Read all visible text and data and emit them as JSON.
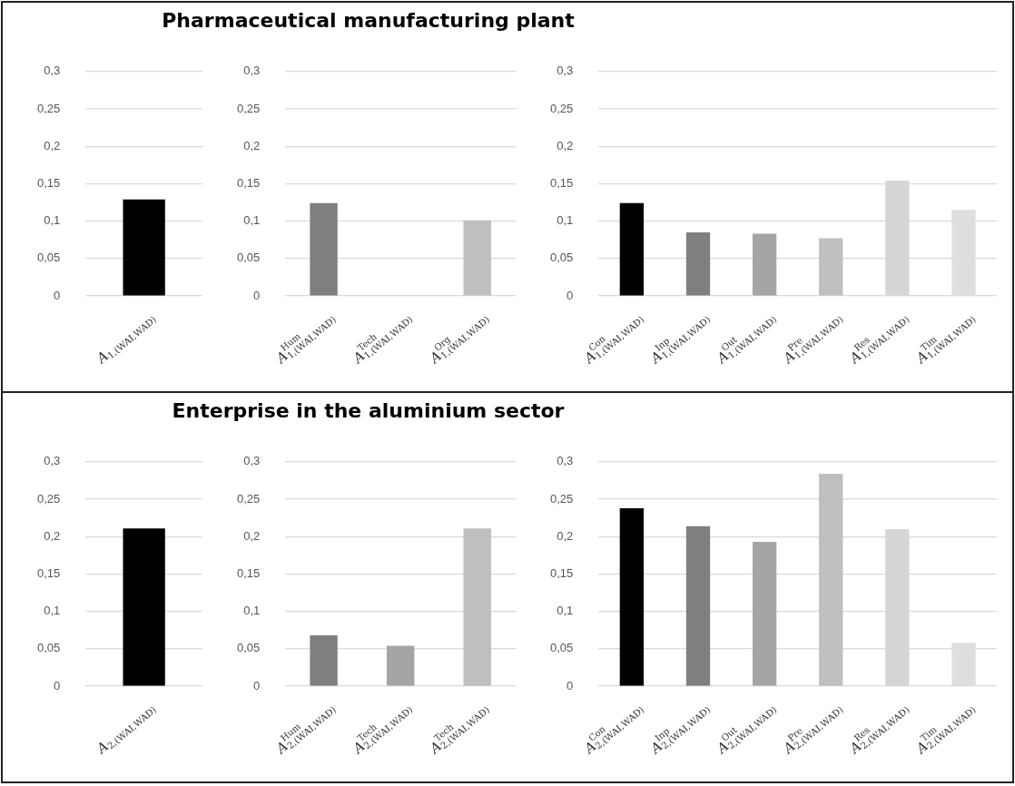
{
  "chart_data": [
    {
      "type": "bar",
      "categories": [
        "A$_{1,(WAI,WAD)}$"
      ],
      "values": [
        0.129
      ],
      "colors": [
        "#000000"
      ],
      "ylim": [
        0,
        0.3
      ],
      "yticks": [
        {
          "value": 0,
          "label": "0"
        },
        {
          "value": 0.05,
          "label": "0,05"
        },
        {
          "value": 0.1,
          "label": "0,1"
        },
        {
          "value": 0.15,
          "label": "0,15"
        },
        {
          "value": 0.2,
          "label": "0,2"
        },
        {
          "value": 0.25,
          "label": "0,25"
        },
        {
          "value": 0.3,
          "label": "0,3"
        }
      ],
      "grid": "y",
      "legend": false
    },
    {
      "type": "bar",
      "title": "Pharmaceutical manufacturing plant",
      "categories": [
        "A$^{Hum}$$_{1,(WAI,WAD)}$",
        "A$^{Tech}$$_{1,(WAI,WAD)}$",
        "A$^{Org}$$_{1,(WAI,WAD)}$"
      ],
      "values": [
        0.124,
        0,
        0.101
      ],
      "colors": [
        "#7f7f7f",
        "#a5a5a5",
        "#bfbfbf"
      ],
      "ylim": [
        0,
        0.3
      ],
      "yticks": [
        {
          "value": 0,
          "label": "0"
        },
        {
          "value": 0.05,
          "label": "0,05"
        },
        {
          "value": 0.1,
          "label": "0,1"
        },
        {
          "value": 0.15,
          "label": "0,15"
        },
        {
          "value": 0.2,
          "label": "0,2"
        },
        {
          "value": 0.25,
          "label": "0,25"
        },
        {
          "value": 0.3,
          "label": "0,3"
        }
      ],
      "grid": "y",
      "legend": false
    },
    {
      "type": "bar",
      "categories": [
        "A$^{Con}$$_{1,(WAI,WAD)}$",
        "A$^{Inp}$$_{1,(WAI,WAD)}$",
        "A$^{Out}$$_{1,(WAI,WAD)}$",
        "A$^{Pre}$$_{1,(WAI,WAD)}$",
        "A$^{Res}$$_{1,(WAI,WAD)}$",
        "A$^{Tim}$$_{1,(WAI,WAD)}$"
      ],
      "values": [
        0.124,
        0.085,
        0.083,
        0.077,
        0.154,
        0.115
      ],
      "colors": [
        "#000000",
        "#7f7f7f",
        "#a5a5a5",
        "#bfbfbf",
        "#d6d6d6",
        "#dedede"
      ],
      "ylim": [
        0,
        0.3
      ],
      "yticks": [
        {
          "value": 0,
          "label": "0"
        },
        {
          "value": 0.05,
          "label": "0,05"
        },
        {
          "value": 0.1,
          "label": "0,1"
        },
        {
          "value": 0.15,
          "label": "0,15"
        },
        {
          "value": 0.2,
          "label": "0,2"
        },
        {
          "value": 0.25,
          "label": "0,25"
        },
        {
          "value": 0.3,
          "label": "0,3"
        }
      ],
      "grid": "y",
      "legend": false
    },
    {
      "type": "bar",
      "categories": [
        "A$_{2,(WAI,WAD)}$"
      ],
      "values": [
        0.211
      ],
      "colors": [
        "#000000"
      ],
      "ylim": [
        0,
        0.3
      ],
      "yticks": [
        {
          "value": 0,
          "label": "0"
        },
        {
          "value": 0.05,
          "label": "0,05"
        },
        {
          "value": 0.1,
          "label": "0,1"
        },
        {
          "value": 0.15,
          "label": "0,15"
        },
        {
          "value": 0.2,
          "label": "0,2"
        },
        {
          "value": 0.25,
          "label": "0,25"
        },
        {
          "value": 0.3,
          "label": "0,3"
        }
      ],
      "grid": "y",
      "legend": false
    },
    {
      "type": "bar",
      "title": "Enterprise in the aluminium sector",
      "categories": [
        "A$^{Hum}$$_{2,(WAI,WAD)}$",
        "A$^{Tech}$$_{2,(WAI,WAD)}$",
        "A$^{Tech}$$_{2,(WAI,WAD)}$"
      ],
      "values": [
        0.068,
        0.054,
        0.211
      ],
      "colors": [
        "#7f7f7f",
        "#a5a5a5",
        "#bfbfbf"
      ],
      "ylim": [
        0,
        0.3
      ],
      "yticks": [
        {
          "value": 0,
          "label": "0"
        },
        {
          "value": 0.05,
          "label": "0,05"
        },
        {
          "value": 0.1,
          "label": "0,1"
        },
        {
          "value": 0.15,
          "label": "0,15"
        },
        {
          "value": 0.2,
          "label": "0,2"
        },
        {
          "value": 0.25,
          "label": "0,25"
        },
        {
          "value": 0.3,
          "label": "0,3"
        }
      ],
      "grid": "y",
      "legend": false
    },
    {
      "type": "bar",
      "categories": [
        "A$^{Con}$$_{2,(WAI,WAD)}$",
        "A$^{Inp}$$_{2,(WAI,WAD)}$",
        "A$^{Out}$$_{2,(WAI,WAD)}$",
        "A$^{Pre}$$_{2,(WAI,WAD)}$",
        "A$^{Res}$$_{2,(WAI,WAD)}$",
        "A$^{Tim}$$_{2,(WAI,WAD)}$"
      ],
      "values": [
        0.238,
        0.214,
        0.193,
        0.284,
        0.21,
        0.058
      ],
      "colors": [
        "#000000",
        "#7f7f7f",
        "#a5a5a5",
        "#bfbfbf",
        "#d6d6d6",
        "#dedede"
      ],
      "ylim": [
        0,
        0.3
      ],
      "yticks": [
        {
          "value": 0,
          "label": "0"
        },
        {
          "value": 0.05,
          "label": "0,05"
        },
        {
          "value": 0.1,
          "label": "0,1"
        },
        {
          "value": 0.15,
          "label": "0,15"
        },
        {
          "value": 0.2,
          "label": "0,2"
        },
        {
          "value": 0.25,
          "label": "0,25"
        },
        {
          "value": 0.3,
          "label": "0,3"
        }
      ],
      "grid": "y",
      "legend": false
    }
  ]
}
